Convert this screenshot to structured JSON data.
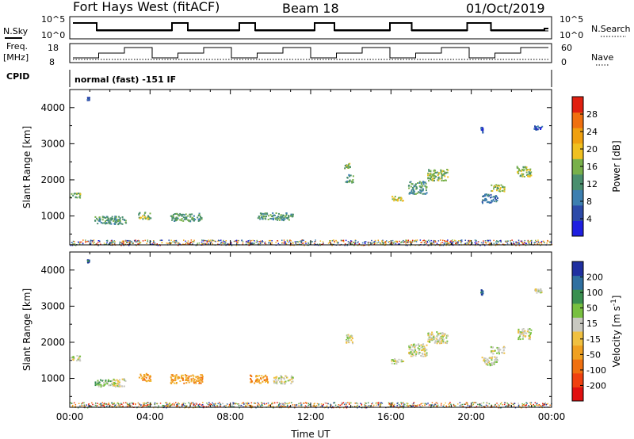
{
  "header": {
    "radar": "Fort Hays West (fitACF)",
    "beam": "Beam 18",
    "date": "01/Oct/2019"
  },
  "strip_labels": {
    "nsky": "N.Sky",
    "nsearch": "N.Search",
    "freq_line1": "Freq.",
    "freq_line2": "[MHz]",
    "nave": "Nave",
    "cpid": "CPID",
    "cpid_value": "normal (fast) -151 IF"
  },
  "strip_ticks": {
    "noise_left": [
      "10^5",
      "10^0"
    ],
    "noise_right": [
      "10^5",
      "10^0"
    ],
    "freq_left": [
      "18",
      "8"
    ],
    "nave_right": [
      "60",
      "0"
    ]
  },
  "colorbars": {
    "power": {
      "label": "Power [dB]",
      "ticks": [
        "4",
        "8",
        "12",
        "16",
        "20",
        "24",
        "28"
      ],
      "colors": [
        "#1f1fe0",
        "#2c4aa8",
        "#3d7fb0",
        "#4a8f6e",
        "#78b04a",
        "#f0c020",
        "#f0a010",
        "#f07010",
        "#e02010"
      ]
    },
    "velocity": {
      "label": "Velocity [m s",
      "label_sup": "-1",
      "label_end": "]",
      "ticks": [
        "-200",
        "-100",
        "-50",
        "-15",
        "15",
        "50",
        "100",
        "200"
      ],
      "colors": [
        "#e01010",
        "#f04010",
        "#f07010",
        "#f0a020",
        "#f0c040",
        "#c8c8c0",
        "#78c040",
        "#3a8f50",
        "#2f6fa0",
        "#1f2fa0"
      ]
    }
  },
  "chart_data": [
    {
      "type": "heatmap",
      "title": "",
      "xlabel": "",
      "ylabel": "Slant Range [km]",
      "x_ticks": [
        "00:00",
        "04:00",
        "08:00",
        "12:00",
        "16:00",
        "20:00",
        "00:00"
      ],
      "y_ticks": [
        "1000",
        "2000",
        "3000",
        "4000"
      ],
      "xlim": [
        0,
        24
      ],
      "ylim": [
        200,
        4500
      ],
      "colorbar": "Power [dB]",
      "patches": [
        {
          "t": 0.25,
          "r": 1580,
          "dt": 0.5,
          "dr": 140,
          "c": 4
        },
        {
          "t": 2.0,
          "r": 900,
          "dt": 1.6,
          "dr": 220,
          "c": 3
        },
        {
          "t": 3.7,
          "r": 1020,
          "dt": 0.6,
          "dr": 200,
          "c": 4
        },
        {
          "t": 5.8,
          "r": 980,
          "dt": 1.6,
          "dr": 220,
          "c": 3
        },
        {
          "t": 10.2,
          "r": 1000,
          "dt": 1.8,
          "dr": 200,
          "c": 3
        },
        {
          "t": 13.9,
          "r": 2050,
          "dt": 0.4,
          "dr": 220,
          "c": 3
        },
        {
          "t": 13.8,
          "r": 2400,
          "dt": 0.3,
          "dr": 150,
          "c": 4
        },
        {
          "t": 16.3,
          "r": 1500,
          "dt": 0.6,
          "dr": 150,
          "c": 5
        },
        {
          "t": 17.3,
          "r": 1800,
          "dt": 0.9,
          "dr": 350,
          "c": 3
        },
        {
          "t": 18.3,
          "r": 2150,
          "dt": 1.0,
          "dr": 320,
          "c": 4
        },
        {
          "t": 20.9,
          "r": 1500,
          "dt": 0.8,
          "dr": 250,
          "c": 2
        },
        {
          "t": 21.3,
          "r": 1800,
          "dt": 0.7,
          "dr": 200,
          "c": 4
        },
        {
          "t": 22.6,
          "r": 2250,
          "dt": 0.7,
          "dr": 300,
          "c": 4
        },
        {
          "t": 23.3,
          "r": 3450,
          "dt": 0.4,
          "dr": 120,
          "c": 1
        },
        {
          "t": 0.9,
          "r": 4260,
          "dt": 0.1,
          "dr": 80,
          "c": 1
        },
        {
          "t": 20.5,
          "r": 3400,
          "dt": 0.1,
          "dr": 150,
          "c": 1
        }
      ],
      "ground_band": {
        "t0": 0,
        "t1": 24,
        "r0": 200,
        "r1": 350
      }
    },
    {
      "type": "heatmap",
      "title": "",
      "xlabel": "Time UT",
      "ylabel": "Slant Range [km]",
      "x_ticks": [
        "00:00",
        "04:00",
        "08:00",
        "12:00",
        "16:00",
        "20:00",
        "00:00"
      ],
      "y_ticks": [
        "1000",
        "2000",
        "3000",
        "4000"
      ],
      "xlim": [
        0,
        24
      ],
      "ylim": [
        200,
        4500
      ],
      "colorbar": "Velocity [m s-1]",
      "patches": [
        {
          "t": 0.25,
          "r": 1580,
          "dt": 0.5,
          "dr": 140,
          "c": 5
        },
        {
          "t": 1.6,
          "r": 880,
          "dt": 0.8,
          "dr": 200,
          "c": 6
        },
        {
          "t": 2.4,
          "r": 900,
          "dt": 0.7,
          "dr": 220,
          "c": 5
        },
        {
          "t": 3.7,
          "r": 1050,
          "dt": 0.6,
          "dr": 220,
          "c": 3
        },
        {
          "t": 5.8,
          "r": 1000,
          "dt": 1.6,
          "dr": 240,
          "c": 3
        },
        {
          "t": 9.4,
          "r": 1000,
          "dt": 0.9,
          "dr": 220,
          "c": 3
        },
        {
          "t": 10.6,
          "r": 980,
          "dt": 1.0,
          "dr": 220,
          "c": 5
        },
        {
          "t": 13.9,
          "r": 2100,
          "dt": 0.4,
          "dr": 260,
          "c": 5
        },
        {
          "t": 16.3,
          "r": 1500,
          "dt": 0.6,
          "dr": 150,
          "c": 5
        },
        {
          "t": 17.3,
          "r": 1800,
          "dt": 0.9,
          "dr": 350,
          "c": 5
        },
        {
          "t": 18.3,
          "r": 2150,
          "dt": 1.0,
          "dr": 320,
          "c": 5
        },
        {
          "t": 20.9,
          "r": 1500,
          "dt": 0.8,
          "dr": 250,
          "c": 5
        },
        {
          "t": 21.3,
          "r": 1800,
          "dt": 0.7,
          "dr": 200,
          "c": 5
        },
        {
          "t": 22.6,
          "r": 2250,
          "dt": 0.7,
          "dr": 300,
          "c": 5
        },
        {
          "t": 23.3,
          "r": 3450,
          "dt": 0.4,
          "dr": 120,
          "c": 5
        },
        {
          "t": 0.9,
          "r": 4260,
          "dt": 0.1,
          "dr": 80,
          "c": 8
        },
        {
          "t": 20.5,
          "r": 3400,
          "dt": 0.1,
          "dr": 150,
          "c": 8
        }
      ],
      "ground_band": {
        "t0": 0,
        "t1": 24,
        "r0": 200,
        "r1": 350
      }
    }
  ]
}
